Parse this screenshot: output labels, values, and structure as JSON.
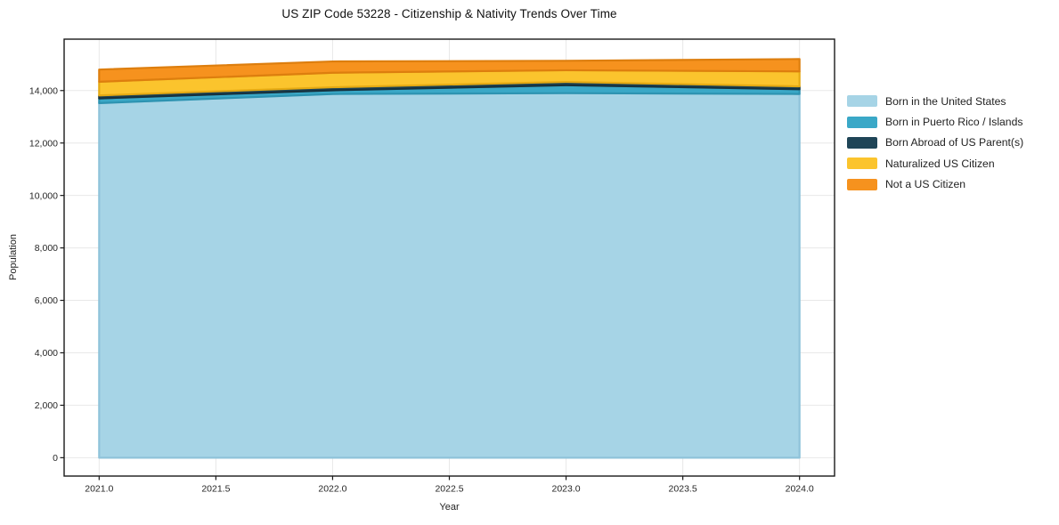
{
  "figure": {
    "background": "#ffffff"
  },
  "chart_data": {
    "type": "area",
    "stacked": true,
    "title": "US ZIP Code 53228 - Citizenship & Nativity Trends Over Time",
    "xlabel": "Year",
    "ylabel": "Population",
    "x": [
      2021,
      2022,
      2023,
      2024
    ],
    "series": [
      {
        "name": "Born in the United States",
        "color": "#a6d4e6",
        "edge": "#8fc3da",
        "values": [
          13520,
          13870,
          13900,
          13870
        ]
      },
      {
        "name": "Born in Puerto Rico / Islands",
        "color": "#3aa8c7",
        "edge": "#2d93b1",
        "values": [
          180,
          140,
          305,
          180
        ]
      },
      {
        "name": "Born Abroad of US Parent(s)",
        "color": "#1f4557",
        "edge": "#16323f",
        "values": [
          115,
          115,
          125,
          110
        ]
      },
      {
        "name": "Naturalized US Citizen",
        "color": "#fbc42d",
        "edge": "#e5aa13",
        "values": [
          520,
          555,
          445,
          570
        ]
      },
      {
        "name": "Not a US Citizen",
        "color": "#f6921e",
        "edge": "#dd7e0e",
        "values": [
          465,
          430,
          360,
          470
        ]
      }
    ],
    "stack_totals": [
      14800,
      15110,
      15135,
      15200
    ],
    "xticks": [
      2021.0,
      2021.5,
      2022.0,
      2022.5,
      2023.0,
      2023.5,
      2024.0
    ],
    "xtick_labels": [
      "2021.0",
      "2021.5",
      "2022.0",
      "2022.5",
      "2023.0",
      "2023.5",
      "2024.0"
    ],
    "yticks": [
      0,
      2000,
      4000,
      6000,
      8000,
      10000,
      12000,
      14000
    ],
    "ytick_labels": [
      "0",
      "2,000",
      "4,000",
      "6,000",
      "8,000",
      "10,000",
      "12,000",
      "14,000"
    ],
    "xlim": [
      2020.85,
      2024.15
    ],
    "ylim": [
      -700,
      15960
    ],
    "grid": true,
    "grid_color": "#e8e8e8",
    "spine_color": "#1a1a1a",
    "tick_label_color": "#262626",
    "legend_position": "right-outside"
  }
}
